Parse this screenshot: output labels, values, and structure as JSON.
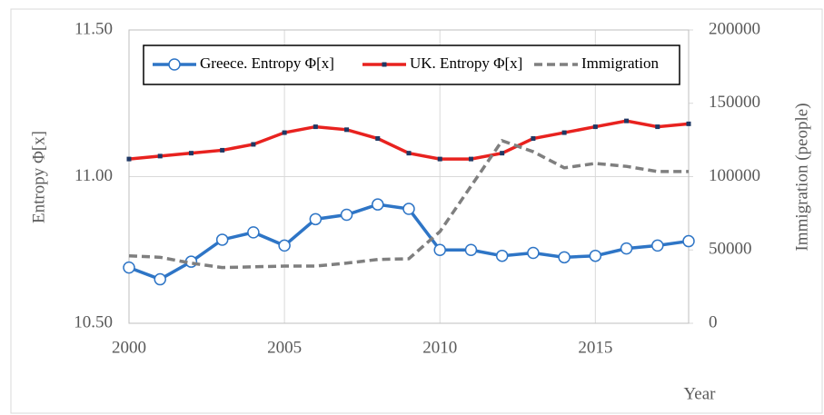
{
  "chart_data": {
    "type": "line",
    "y_label": "Entropy Φ[x]",
    "y2_label": "Immigration  (people)",
    "x_label": "Year",
    "x": [
      2000,
      2001,
      2002,
      2003,
      2004,
      2005,
      2006,
      2007,
      2008,
      2009,
      2010,
      2011,
      2012,
      2013,
      2014,
      2015,
      2016,
      2017,
      2018
    ],
    "xlim": [
      2000,
      2018
    ],
    "xticks": [
      2000,
      2005,
      2010,
      2015
    ],
    "ylim": [
      10.5,
      11.5
    ],
    "yticks": [
      {
        "value": 10.5,
        "label": "10.50"
      },
      {
        "value": 11,
        "label": "11.00"
      },
      {
        "value": 11.5,
        "label": "11.50"
      }
    ],
    "y2lim": [
      0,
      200000
    ],
    "y2ticks": [
      0,
      50000,
      100000,
      150000,
      200000
    ],
    "grid": true,
    "legend_position": "top",
    "series": [
      {
        "name": "Greece. Entropy Φ[x]",
        "color": "#2e75c6",
        "marker": "circle",
        "values": [
          10.69,
          10.65,
          10.71,
          10.785,
          10.81,
          10.765,
          10.855,
          10.87,
          10.905,
          10.89,
          10.75,
          10.75,
          10.73,
          10.74,
          10.725,
          10.73,
          10.755,
          10.765,
          10.78
        ]
      },
      {
        "name": "UK. Entropy Φ[x]",
        "color": "#e8221f",
        "marker": "square",
        "values": [
          11.06,
          11.07,
          11.08,
          11.09,
          11.11,
          11.15,
          11.17,
          11.16,
          11.13,
          11.08,
          11.06,
          11.06,
          11.08,
          11.13,
          11.15,
          11.17,
          11.19,
          11.17,
          11.18
        ]
      },
      {
        "name": "Immigration",
        "color": "#7f7f7f",
        "marker": "none",
        "dash": true,
        "axis": "y2",
        "values": [
          46000,
          45000,
          41000,
          38000,
          38500,
          39000,
          39000,
          41000,
          43500,
          44000,
          62500,
          93500,
          124500,
          117000,
          106000,
          109000,
          107000,
          103500,
          103500
        ]
      }
    ]
  }
}
